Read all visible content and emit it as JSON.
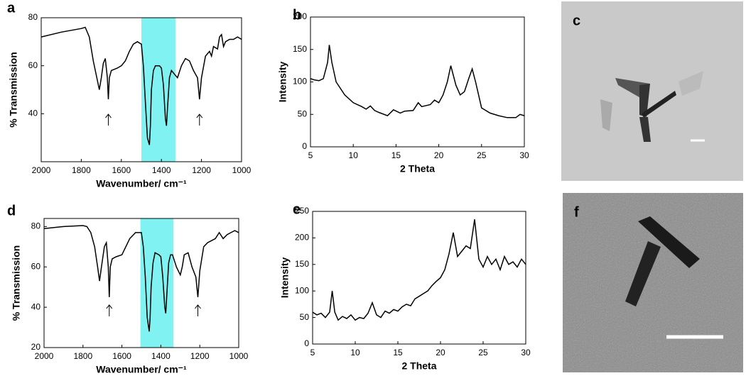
{
  "chart_data": [
    {
      "type": "line",
      "label": "a",
      "xlabel": "Wavenumber/ cm⁻¹",
      "ylabel": "% Transmission",
      "color": "#000000",
      "xlim": [
        2000,
        1000
      ],
      "ylim": [
        20,
        80
      ],
      "xticks": [
        2000,
        1800,
        1600,
        1400,
        1200,
        1000
      ],
      "yticks": [
        40,
        60,
        80
      ],
      "highlight": {
        "range": [
          1500,
          1330
        ],
        "color": "#80f2f2"
      },
      "arrows": [
        1665,
        1210
      ],
      "x": [
        2000,
        1900,
        1800,
        1780,
        1760,
        1740,
        1720,
        1710,
        1700,
        1690,
        1680,
        1670,
        1665,
        1660,
        1650,
        1620,
        1600,
        1580,
        1560,
        1540,
        1520,
        1500,
        1490,
        1480,
        1470,
        1460,
        1455,
        1450,
        1440,
        1430,
        1410,
        1400,
        1390,
        1380,
        1375,
        1370,
        1360,
        1350,
        1340,
        1320,
        1300,
        1280,
        1260,
        1240,
        1220,
        1210,
        1200,
        1180,
        1160,
        1150,
        1140,
        1120,
        1110,
        1100,
        1090,
        1080,
        1060,
        1040,
        1020,
        1000
      ],
      "values": [
        72,
        74,
        75.5,
        76,
        72,
        62,
        54,
        50,
        55,
        61,
        63,
        55,
        46,
        55,
        58,
        59,
        60,
        62,
        66,
        69,
        70,
        69,
        60,
        45,
        30,
        27,
        35,
        50,
        58,
        60,
        60,
        59,
        52,
        38,
        35,
        42,
        55,
        58,
        57,
        55,
        60,
        63,
        62,
        58,
        55,
        46,
        55,
        64,
        66,
        64,
        68,
        67,
        72,
        73,
        68,
        70,
        71,
        71,
        72,
        71
      ]
    },
    {
      "type": "line",
      "label": "b",
      "xlabel": "2 Theta",
      "ylabel": "Intensity",
      "color": "#000000",
      "xlim": [
        5,
        30
      ],
      "ylim": [
        0,
        200
      ],
      "xticks": [
        5,
        10,
        15,
        20,
        25,
        30
      ],
      "yticks": [
        0,
        50,
        100,
        150,
        200
      ],
      "x": [
        5,
        5.5,
        6,
        6.5,
        7,
        7.2,
        7.5,
        8,
        9,
        10,
        11,
        11.5,
        12,
        12.5,
        13,
        14,
        14.7,
        15.5,
        16,
        17,
        17.6,
        18,
        19,
        19.5,
        20,
        20.5,
        21,
        21.4,
        22,
        22.5,
        23,
        23.5,
        23.9,
        24.3,
        25,
        26,
        27,
        28,
        29,
        29.5,
        30
      ],
      "values": [
        105,
        103,
        102,
        105,
        130,
        157,
        130,
        100,
        80,
        68,
        62,
        58,
        63,
        56,
        53,
        48,
        57,
        52,
        55,
        56,
        68,
        62,
        65,
        72,
        68,
        80,
        100,
        125,
        95,
        80,
        85,
        105,
        120,
        100,
        60,
        52,
        48,
        45,
        45,
        50,
        48
      ]
    },
    {
      "type": "line",
      "label": "d",
      "xlabel": "Wavenumber/ cm⁻¹",
      "ylabel": "% Transmission",
      "color": "#000000",
      "xlim": [
        2000,
        1000
      ],
      "ylim": [
        20,
        84
      ],
      "xticks": [
        2000,
        1800,
        1600,
        1400,
        1200,
        1000
      ],
      "yticks": [
        20,
        40,
        60,
        80
      ],
      "highlight": {
        "range": [
          1505,
          1335
        ],
        "color": "#80f2f2"
      },
      "arrows": [
        1665,
        1210
      ],
      "x": [
        2000,
        1900,
        1800,
        1780,
        1760,
        1740,
        1725,
        1715,
        1705,
        1690,
        1680,
        1670,
        1665,
        1660,
        1650,
        1630,
        1600,
        1580,
        1560,
        1530,
        1500,
        1490,
        1480,
        1470,
        1460,
        1455,
        1450,
        1440,
        1430,
        1410,
        1400,
        1390,
        1380,
        1375,
        1370,
        1360,
        1350,
        1340,
        1320,
        1300,
        1290,
        1280,
        1260,
        1240,
        1220,
        1210,
        1200,
        1180,
        1160,
        1140,
        1120,
        1100,
        1080,
        1060,
        1040,
        1020,
        1000
      ],
      "values": [
        79,
        80,
        80.5,
        80,
        77,
        70,
        60,
        53,
        60,
        70,
        72,
        60,
        45,
        60,
        64,
        65,
        66,
        70,
        74,
        77,
        77,
        70,
        55,
        35,
        28,
        35,
        50,
        62,
        67,
        66,
        65,
        55,
        40,
        37,
        45,
        62,
        66,
        66,
        60,
        56,
        60,
        66,
        67,
        60,
        55,
        45,
        58,
        70,
        72,
        73,
        74,
        77,
        74,
        76,
        77,
        78,
        77
      ]
    },
    {
      "type": "line",
      "label": "e",
      "xlabel": "2 Theta",
      "ylabel": "Intensity",
      "color": "#000000",
      "xlim": [
        5,
        30
      ],
      "ylim": [
        0,
        250
      ],
      "xticks": [
        5,
        10,
        15,
        20,
        25,
        30
      ],
      "yticks": [
        0,
        50,
        100,
        150,
        200,
        250
      ],
      "x": [
        5,
        5.5,
        6,
        6.5,
        7,
        7.3,
        7.6,
        8,
        8.5,
        9,
        9.5,
        10,
        10.5,
        11,
        11.5,
        12,
        12.5,
        13,
        13.5,
        14,
        14.5,
        15,
        15.5,
        16,
        16.5,
        17,
        17.5,
        18,
        18.5,
        19,
        19.5,
        20,
        20.5,
        21,
        21.5,
        22,
        22.5,
        23,
        23.5,
        24,
        24.5,
        25,
        25.5,
        26,
        26.5,
        27,
        27.5,
        28,
        28.5,
        29,
        29.5,
        30
      ],
      "values": [
        60,
        55,
        58,
        50,
        60,
        100,
        60,
        45,
        52,
        48,
        55,
        45,
        50,
        48,
        58,
        78,
        55,
        50,
        62,
        58,
        65,
        62,
        70,
        75,
        72,
        85,
        90,
        95,
        100,
        110,
        118,
        125,
        140,
        170,
        210,
        165,
        175,
        185,
        180,
        235,
        160,
        145,
        165,
        150,
        160,
        140,
        165,
        150,
        155,
        145,
        160,
        150
      ]
    }
  ],
  "images": [
    {
      "label": "c"
    },
    {
      "label": "f"
    }
  ]
}
